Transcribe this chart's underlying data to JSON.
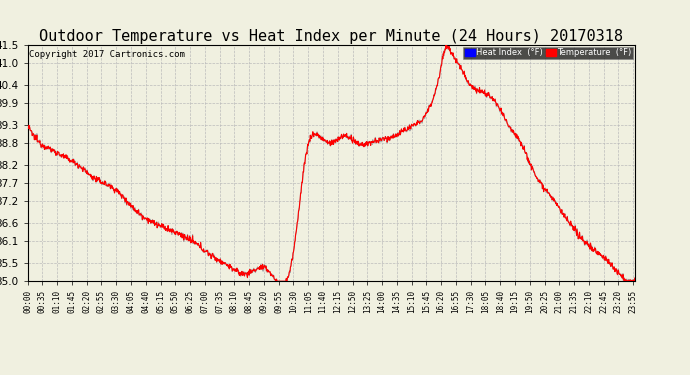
{
  "title": "Outdoor Temperature vs Heat Index per Minute (24 Hours) 20170318",
  "copyright": "Copyright 2017 Cartronics.com",
  "legend_labels": [
    "Heat Index  (°F)",
    "Temperature  (°F)"
  ],
  "line_color_heat": "#aaaaaa",
  "line_color_temp": "red",
  "y_min": 35.0,
  "y_max": 41.5,
  "yticks": [
    35.0,
    35.5,
    36.1,
    36.6,
    37.2,
    37.7,
    38.2,
    38.8,
    39.3,
    39.9,
    40.4,
    41.0,
    41.5
  ],
  "bg_color": "#f0f0e0",
  "grid_color": "#bbbbbb",
  "title_fontsize": 11,
  "copyright_fontsize": 6.5,
  "xtick_fontsize": 5.5,
  "ytick_fontsize": 7.5,
  "xtick_labels": [
    "00:00",
    "00:35",
    "01:10",
    "01:45",
    "02:20",
    "02:55",
    "03:30",
    "04:05",
    "04:40",
    "05:15",
    "05:50",
    "06:25",
    "07:00",
    "07:35",
    "08:10",
    "08:45",
    "09:20",
    "09:55",
    "10:30",
    "11:05",
    "11:40",
    "12:15",
    "12:50",
    "13:25",
    "14:00",
    "14:35",
    "15:10",
    "15:45",
    "16:20",
    "16:55",
    "17:30",
    "18:05",
    "18:40",
    "19:15",
    "19:50",
    "20:25",
    "21:00",
    "21:35",
    "22:10",
    "22:45",
    "23:20",
    "23:55"
  ],
  "curve_knots_hours": [
    0,
    0.5,
    1.0,
    1.5,
    2.0,
    2.5,
    3.5,
    4.2,
    5.0,
    6.5,
    7.5,
    8.0,
    8.5,
    9.5,
    10.5,
    11.0,
    11.5,
    12.0,
    12.5,
    13.0,
    13.5,
    14.0,
    14.5,
    15.0,
    15.5,
    16.0,
    16.3,
    16.5,
    16.8,
    17.0,
    17.5,
    18.0,
    18.5,
    19.0,
    19.5,
    20.0,
    20.5,
    21.0,
    21.5,
    22.0,
    22.5,
    23.0,
    23.5,
    23.9
  ],
  "curve_knots_temps": [
    39.3,
    38.8,
    38.6,
    38.4,
    38.2,
    37.9,
    37.5,
    37.0,
    36.6,
    36.1,
    35.6,
    35.4,
    35.2,
    35.3,
    35.8,
    38.5,
    39.0,
    38.8,
    39.0,
    38.8,
    38.8,
    38.9,
    39.0,
    39.2,
    39.4,
    40.0,
    40.8,
    41.4,
    41.2,
    41.0,
    40.4,
    40.2,
    39.9,
    39.3,
    38.8,
    38.0,
    37.5,
    37.0,
    36.5,
    36.1,
    35.8,
    35.5,
    35.1,
    35.0
  ]
}
